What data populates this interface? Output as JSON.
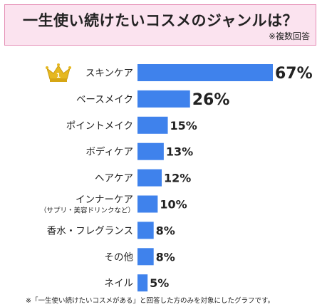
{
  "title": "一生使い続けたいコスメのジャンルは？",
  "title_note": "※複数回答",
  "footnote": "※「一生使い続けたいコスメがある」と回答した方のみを対象にしたグラフです。",
  "colors": {
    "bar": "#3f82ec",
    "title_bg": "#fbe3ef",
    "title_border": "#e58fb6",
    "crown": "#e6b820"
  },
  "rank_badge_icon": "crown-icon",
  "rank_badge_label": "1",
  "chart_data": {
    "type": "bar",
    "orientation": "horizontal",
    "title": "一生使い続けたいコスメのジャンルは？",
    "xlabel": "",
    "ylabel": "",
    "xlim": [
      0,
      67
    ],
    "grid": false,
    "categories": [
      "スキンケア",
      "ベースメイク",
      "ポイントメイク",
      "ボディケア",
      "ヘアケア",
      "インナーケア",
      "香水・フレグランス",
      "その他",
      "ネイル"
    ],
    "category_sublabels": [
      "",
      "",
      "",
      "",
      "",
      "（サプリ・美容ドリンクなど）",
      "",
      "",
      ""
    ],
    "values": [
      67,
      26,
      15,
      13,
      12,
      10,
      8,
      8,
      5
    ],
    "value_labels": [
      "67%",
      "26%",
      "15%",
      "13%",
      "12%",
      "10%",
      "8%",
      "8%",
      "5%"
    ]
  }
}
